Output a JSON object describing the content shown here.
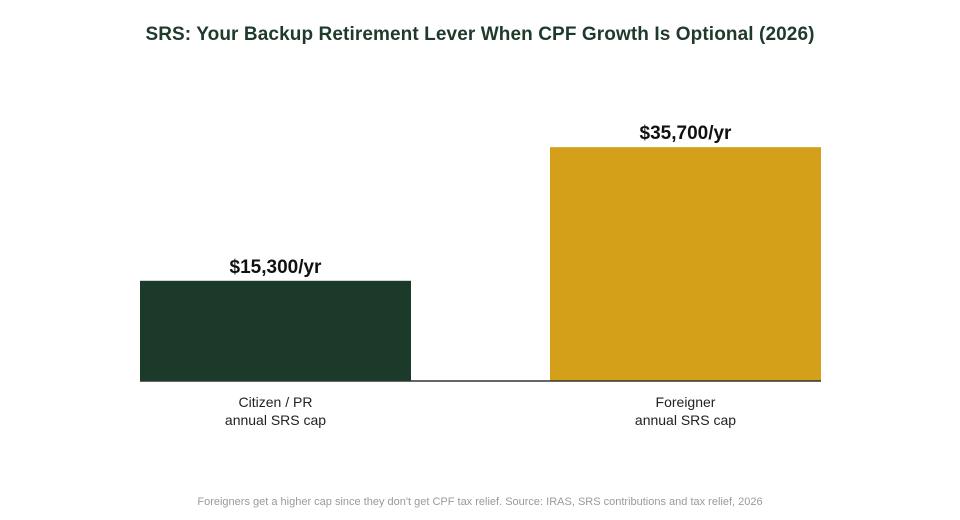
{
  "chart_data": {
    "type": "bar",
    "title": "SRS: Your Backup Retirement Lever When CPF Growth Is Optional (2026)",
    "categories": [
      [
        "Citizen / PR",
        "annual SRS cap"
      ],
      [
        "Foreigner",
        "annual SRS cap"
      ]
    ],
    "values": [
      15300,
      35700
    ],
    "value_labels": [
      "$15,300/yr",
      "$35,700/yr"
    ],
    "colors": [
      "#1b3a2a",
      "#d4a019"
    ],
    "ylim": [
      0,
      40000
    ],
    "xlabel": "",
    "ylabel": "",
    "grid": false,
    "footnote": "Foreigners get a higher cap since they don't get CPF tax relief. Source: IRAS, SRS contributions and tax relief, 2026"
  }
}
